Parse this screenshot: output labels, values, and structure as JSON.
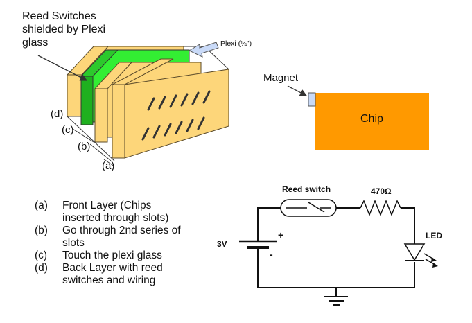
{
  "title_label": "Reed Switches\nshielded by Plexi\nglass",
  "plexi_label": "Plexi (¼\")",
  "magnet_label": "Magnet",
  "chip_label": "Chip",
  "layer_letters": {
    "d": "(d)",
    "c": "(c)",
    "b": "(b)",
    "a": "(a)"
  },
  "legend": [
    {
      "key": "(a)",
      "text": "Front Layer (Chips\ninserted through slots)"
    },
    {
      "key": "(b)",
      "text": "Go through 2nd series of\nslots"
    },
    {
      "key": "(c)",
      "text": "Touch the plexi glass"
    },
    {
      "key": "(d)",
      "text": "Back Layer with reed\nswitches and wiring"
    }
  ],
  "circuit": {
    "reed_switch_label": "Reed switch",
    "resistor_label": "470Ω",
    "led_label": "LED",
    "battery_label": "3V",
    "plus": "+",
    "minus": "-"
  },
  "colors": {
    "layer_fill": "#fdd67a",
    "layer_stroke": "#5a4a2a",
    "plexi_fill": "#33ee33",
    "chip_fill": "#ff9900",
    "magnet_fill": "#c9daf8",
    "arrow_fill": "#c9daf8"
  }
}
